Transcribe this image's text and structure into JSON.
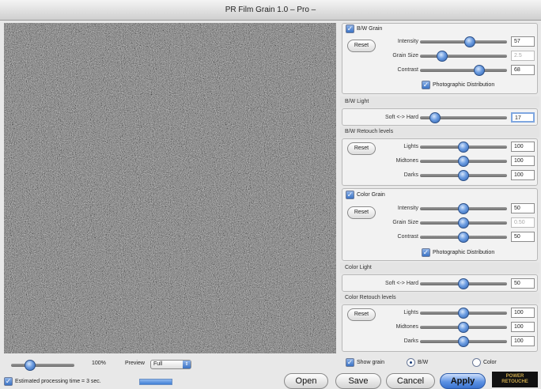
{
  "window": {
    "title": "PR Film Grain 1.0 – Pro –"
  },
  "bw_grain": {
    "enabled": true,
    "label": "B/W Grain",
    "reset_label": "Reset",
    "intensity": {
      "label": "Intensity",
      "value": "57",
      "fraction": 0.57
    },
    "grain_size": {
      "label": "Grain Size",
      "value": "2.5",
      "fraction": 0.25
    },
    "contrast": {
      "label": "Contrast",
      "value": "68",
      "fraction": 0.68
    },
    "photographic": {
      "checked": true,
      "label": "Photographic Distribution"
    }
  },
  "bw_light": {
    "header": "B/W Light",
    "label": "Soft <-> Hard",
    "value": "17",
    "fraction": 0.17
  },
  "bw_retouch": {
    "header": "B/W Retouch levels",
    "reset_label": "Reset",
    "lights": {
      "label": "Lights",
      "value": "100",
      "fraction": 0.5
    },
    "midtones": {
      "label": "Midtones",
      "value": "100",
      "fraction": 0.5
    },
    "darks": {
      "label": "Darks",
      "value": "100",
      "fraction": 0.5
    }
  },
  "color_grain": {
    "enabled": true,
    "label": "Color Grain",
    "reset_label": "Reset",
    "intensity": {
      "label": "Intensity",
      "value": "50",
      "fraction": 0.5
    },
    "grain_size": {
      "label": "Grain Size",
      "value": "0.50",
      "fraction": 0.5
    },
    "contrast": {
      "label": "Contrast",
      "value": "50",
      "fraction": 0.5
    },
    "photographic": {
      "checked": true,
      "label": "Photographic Distribution"
    }
  },
  "color_light": {
    "header": "Color Light",
    "label": "Soft <-> Hard",
    "value": "50",
    "fraction": 0.5
  },
  "color_retouch": {
    "header": "Color Retouch levels",
    "reset_label": "Reset",
    "lights": {
      "label": "Lights",
      "value": "100",
      "fraction": 0.5
    },
    "midtones": {
      "label": "Midtones",
      "value": "100",
      "fraction": 0.5
    },
    "darks": {
      "label": "Darks",
      "value": "100",
      "fraction": 0.5
    }
  },
  "footer": {
    "zoom": {
      "value": "100%",
      "fraction": 0.3
    },
    "preview": {
      "label": "Preview",
      "selected": "Full"
    },
    "show_grain": {
      "checked": true,
      "label": "Show grain"
    },
    "mode_bw": {
      "label": "B/W",
      "selected": true
    },
    "mode_color": {
      "label": "Color",
      "selected": false
    },
    "estimate": {
      "checked": true,
      "label": "Estimated processing time = 3 sec."
    },
    "buttons": {
      "open": "Open",
      "save": "Save",
      "cancel": "Cancel",
      "apply": "Apply"
    },
    "logo": {
      "line1": "POWER",
      "line2": "RETOUCHE"
    }
  },
  "colors": {
    "accent": "#3a72c4",
    "preview_bg": "#6b6b6b"
  }
}
